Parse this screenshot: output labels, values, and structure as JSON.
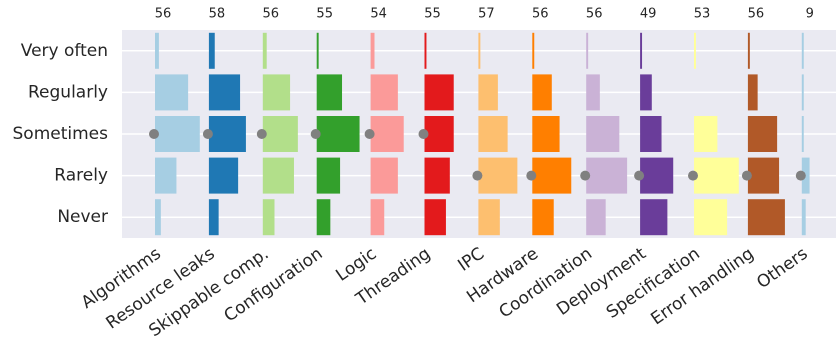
{
  "chart_data": {
    "type": "bar",
    "categories": [
      "Very often",
      "Regularly",
      "Sometimes",
      "Rarely",
      "Never"
    ],
    "xlim": [
      0,
      27
    ],
    "grid": true,
    "series": [
      {
        "name": "Algorithms",
        "color": "#a6cee3",
        "total": 56,
        "values": [
          2,
          17,
          23,
          11,
          3
        ]
      },
      {
        "name": "Resource leaks",
        "color": "#1f78b4",
        "total": 58,
        "values": [
          3,
          16,
          19,
          15,
          5
        ]
      },
      {
        "name": "Skippable comp.",
        "color": "#b2df8a",
        "total": 56,
        "values": [
          2,
          14,
          18,
          16,
          6
        ]
      },
      {
        "name": "Configuration",
        "color": "#33a02c",
        "total": 55,
        "values": [
          1,
          13,
          22,
          12,
          7
        ]
      },
      {
        "name": "Logic",
        "color": "#fb9a99",
        "total": 54,
        "values": [
          2,
          14,
          17,
          14,
          7
        ]
      },
      {
        "name": "Threading",
        "color": "#e31a1c",
        "total": 55,
        "values": [
          1,
          15,
          15,
          13,
          11
        ]
      },
      {
        "name": "IPC",
        "color": "#fdbf6f",
        "total": 57,
        "values": [
          1,
          10,
          15,
          20,
          11
        ]
      },
      {
        "name": "Hardware",
        "color": "#ff7f00",
        "total": 56,
        "values": [
          1,
          10,
          14,
          20,
          11
        ]
      },
      {
        "name": "Coordination",
        "color": "#cab2d6",
        "total": 56,
        "values": [
          1,
          7,
          17,
          21,
          10
        ]
      },
      {
        "name": "Deployment",
        "color": "#6a3d9a",
        "total": 49,
        "values": [
          1,
          6,
          11,
          17,
          14
        ]
      },
      {
        "name": "Specification",
        "color": "#ffff99",
        "total": 53,
        "values": [
          1,
          0,
          12,
          23,
          17
        ]
      },
      {
        "name": "Error handling",
        "color": "#b15928",
        "total": 56,
        "values": [
          1,
          5,
          15,
          16,
          19
        ]
      },
      {
        "name": "Others",
        "color": "#a6cee3",
        "total": 9,
        "values": [
          1,
          1,
          1,
          4,
          2
        ]
      }
    ]
  }
}
